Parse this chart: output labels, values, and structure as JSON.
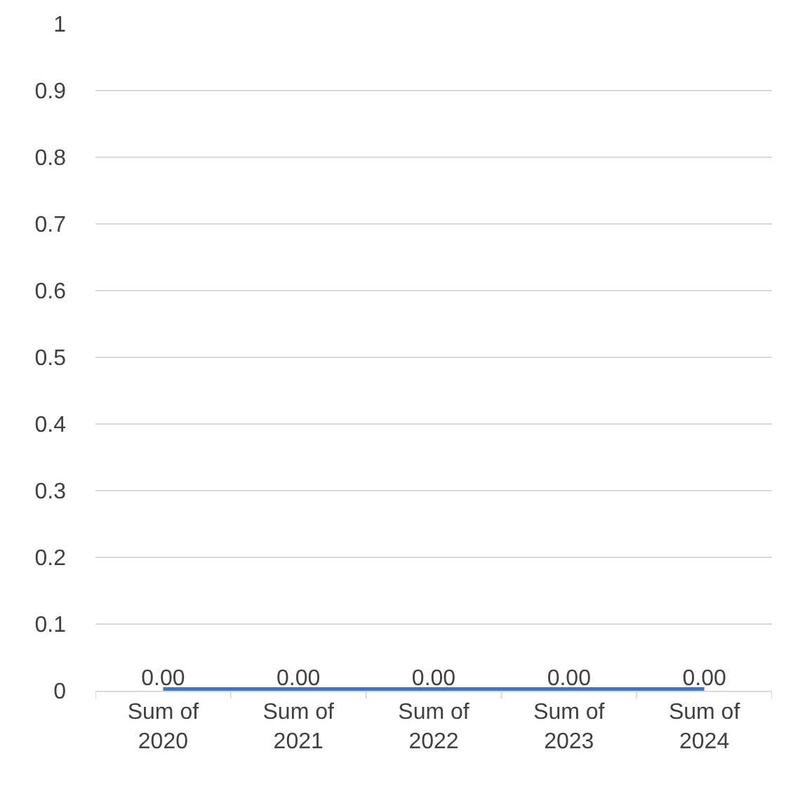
{
  "chart_data": {
    "type": "line",
    "categories": [
      "Sum of 2020",
      "Sum of 2021",
      "Sum of 2022",
      "Sum of 2023",
      "Sum of 2024"
    ],
    "series": [
      {
        "color": "#4472c4",
        "values": [
          0,
          0,
          0,
          0,
          0
        ],
        "value_labels": [
          "0.00",
          "0.00",
          "0.00",
          "0.00",
          "0.00"
        ]
      }
    ],
    "ylim": [
      0,
      1
    ],
    "yticks": [
      0,
      0.1,
      0.2,
      0.3,
      0.4,
      0.5,
      0.6,
      0.7,
      0.8,
      0.9,
      1
    ],
    "grid": "y",
    "marker": "none",
    "line_style": "solid"
  }
}
